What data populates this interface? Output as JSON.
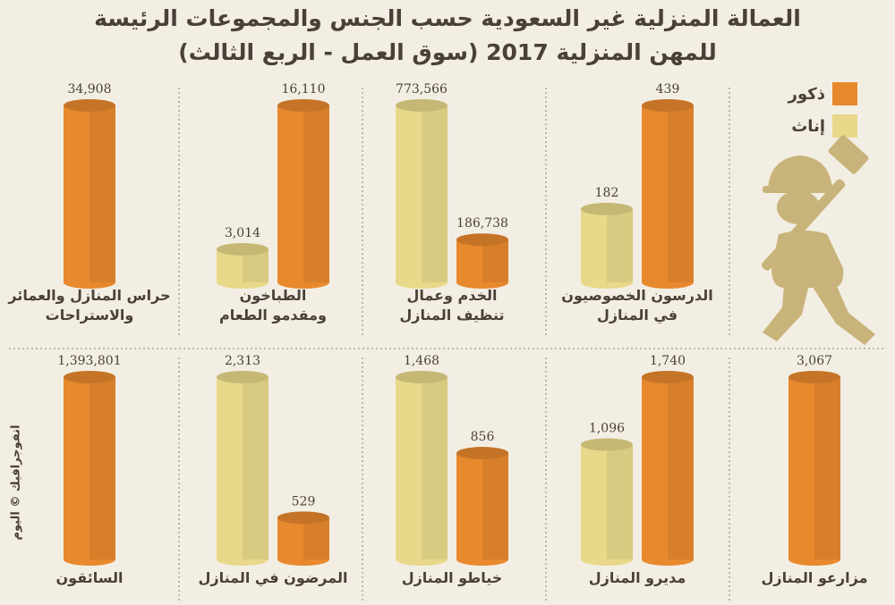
{
  "title_line1": "العمالة المنزلية غير السعودية حسب الجنس والمجموعات الرئيسة",
  "title_line2": "للمهن المنزلية 2017 (سوق العمل - الربع الثالث)",
  "credit": "انفوجرافيك © اليوم",
  "colors": {
    "male": "#e8892e",
    "female": "#e8d98a",
    "text": "#4a4038",
    "divider": "#8a8070",
    "icon": "#c8b37a"
  },
  "legend": {
    "male": "ذكور",
    "female": "إناث"
  },
  "chart_data": {
    "type": "bar",
    "series": [
      {
        "name": "ذكور",
        "key": "male"
      },
      {
        "name": "إناث",
        "key": "female"
      }
    ],
    "groups": [
      {
        "label": [
          "حراس المنازل والعمائر",
          "والاستراحات"
        ],
        "male": 34908,
        "female": null,
        "male_label": "34,908",
        "female_label": ""
      },
      {
        "label": [
          "الطباخون",
          "ومقدمو الطعام"
        ],
        "male": 16110,
        "female": 3014,
        "male_label": "16,110",
        "female_label": "3,014"
      },
      {
        "label": [
          "الخدم وعمال",
          "تنظيف المنازل"
        ],
        "male": 186738,
        "female": 773566,
        "male_label": "186,738",
        "female_label": "773,566"
      },
      {
        "label": [
          "الدرسون الخصوصيون",
          "في المنازل"
        ],
        "male": 439,
        "female": 182,
        "male_label": "439",
        "female_label": "182"
      },
      {
        "label": [
          "السائقون"
        ],
        "male": 1393801,
        "female": null,
        "male_label": "1,393,801",
        "female_label": ""
      },
      {
        "label": [
          "المرضون في المنازل"
        ],
        "male": 529,
        "female": 2313,
        "male_label": "529",
        "female_label": "2,313"
      },
      {
        "label": [
          "خياطو المنازل"
        ],
        "male": 856,
        "female": 1468,
        "male_label": "856",
        "female_label": "1,468"
      },
      {
        "label": [
          "مديرو المنازل"
        ],
        "male": 1740,
        "female": 1096,
        "male_label": "1,740",
        "female_label": "1,096"
      },
      {
        "label": [
          "مزارعو المنازل"
        ],
        "male": 3067,
        "female": null,
        "male_label": "3,067",
        "female_label": ""
      }
    ]
  }
}
